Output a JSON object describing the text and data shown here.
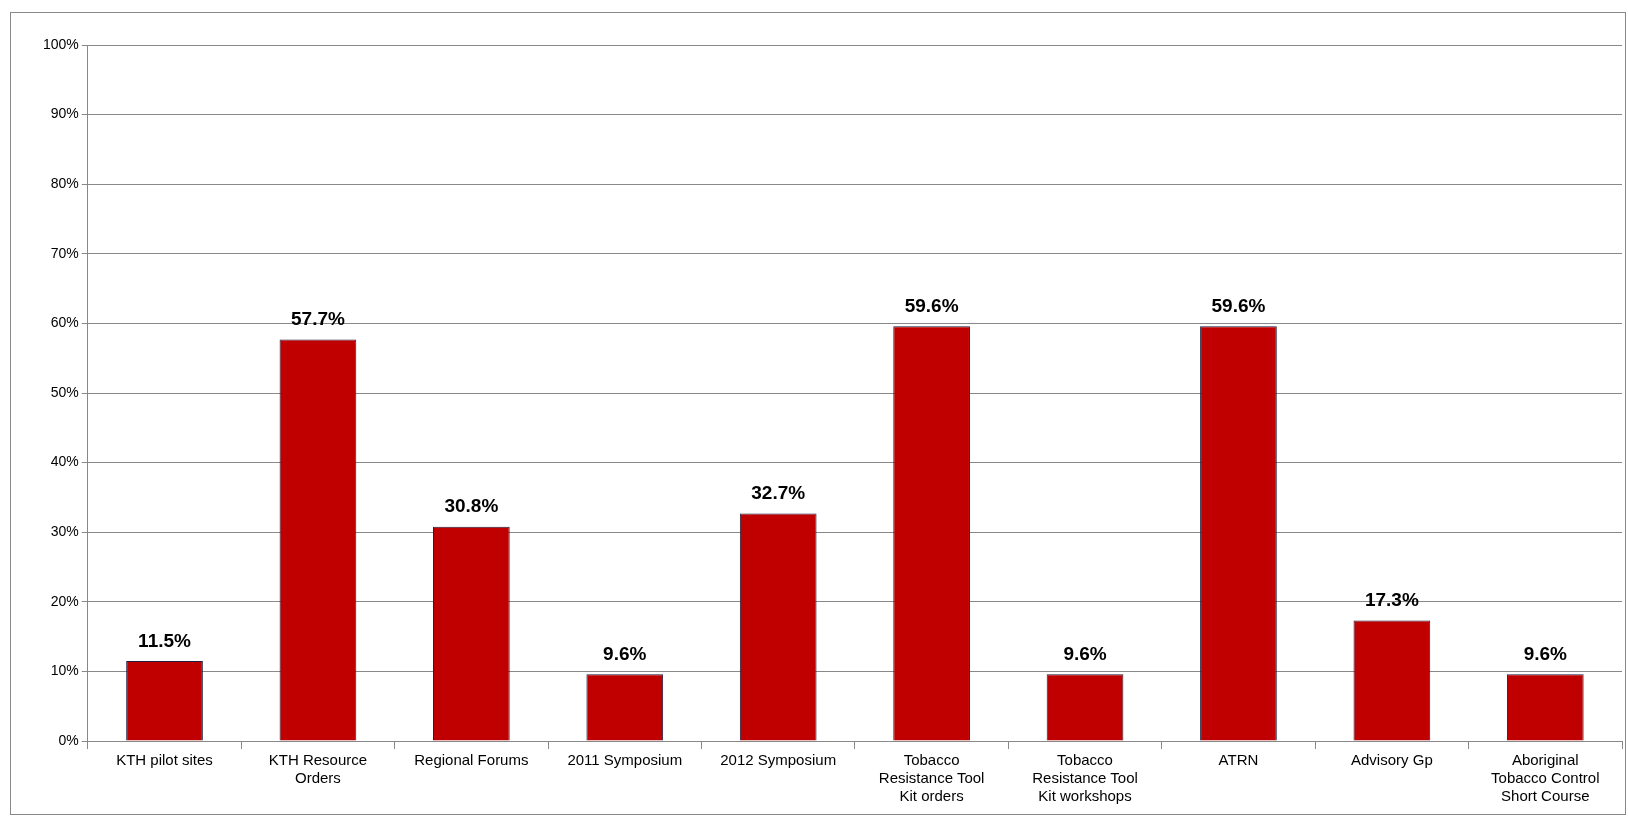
{
  "chart_data": {
    "type": "bar",
    "categories": [
      "KTH pilot sites",
      "KTH Resource Orders",
      "Regional Forums",
      "2011 Symposium",
      "2012 Symposium",
      "Tobacco Resistance Tool Kit orders",
      "Tobacco Resistance Tool Kit workshops",
      "ATRN",
      "Advisory Gp",
      "Aboriginal Tobacco Control Short Course"
    ],
    "values": [
      11.5,
      57.7,
      30.8,
      9.6,
      32.7,
      59.6,
      9.6,
      59.6,
      17.3,
      9.6
    ],
    "value_labels": [
      "11.5%",
      "57.7%",
      "30.8%",
      "9.6%",
      "32.7%",
      "59.6%",
      "9.6%",
      "59.6%",
      "17.3%",
      "9.6%"
    ],
    "color": "#c00000",
    "ylim": [
      0,
      100
    ],
    "yticks": [
      {
        "value": 0,
        "label": "0%"
      },
      {
        "value": 10,
        "label": "10%"
      },
      {
        "value": 20,
        "label": "20%"
      },
      {
        "value": 30,
        "label": "30%"
      },
      {
        "value": 40,
        "label": "40%"
      },
      {
        "value": 50,
        "label": "50%"
      },
      {
        "value": 60,
        "label": "60%"
      },
      {
        "value": 70,
        "label": "70%"
      },
      {
        "value": 80,
        "label": "80%"
      },
      {
        "value": 90,
        "label": "90%"
      },
      {
        "value": 100,
        "label": "100%"
      }
    ],
    "grid": "y",
    "legend": false
  }
}
